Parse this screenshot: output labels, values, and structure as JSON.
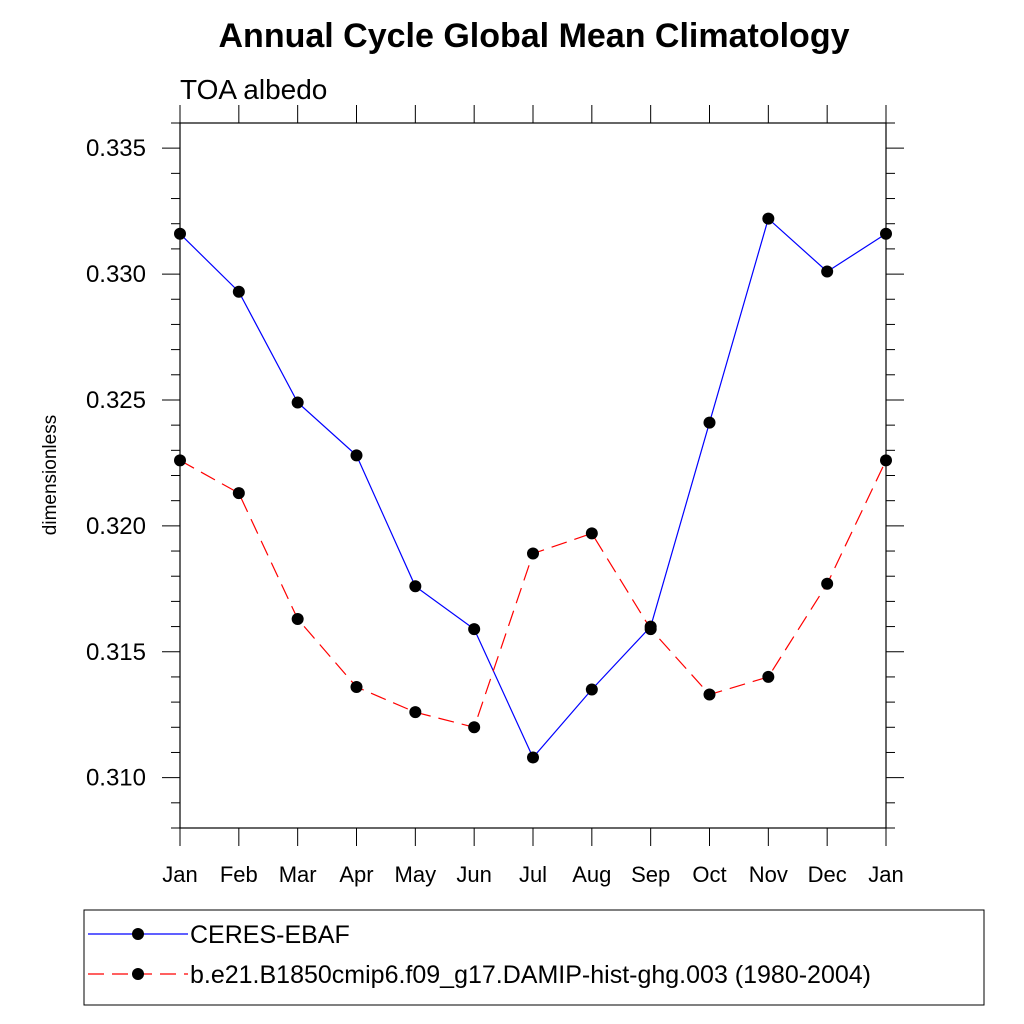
{
  "chart_data": {
    "type": "line",
    "title": "Annual Cycle Global Mean Climatology",
    "subtitle": "TOA albedo",
    "xlabel": "",
    "ylabel": "dimensionless",
    "categories": [
      "Jan",
      "Feb",
      "Mar",
      "Apr",
      "May",
      "Jun",
      "Jul",
      "Aug",
      "Sep",
      "Oct",
      "Nov",
      "Dec",
      "Jan"
    ],
    "ylim": [
      0.308,
      0.336
    ],
    "yticks": [
      "0.310",
      "0.315",
      "0.320",
      "0.325",
      "0.330",
      "0.335"
    ],
    "grid": false,
    "legend_position": "bottom",
    "series": [
      {
        "name": "CERES-EBAF",
        "color": "#0000ff",
        "line_style": "solid",
        "marker": "filled-circle",
        "values": [
          0.3316,
          0.3293,
          0.3249,
          0.3228,
          0.3176,
          0.3159,
          0.3108,
          0.3135,
          0.316,
          0.3241,
          0.3322,
          0.3301,
          0.3316
        ]
      },
      {
        "name": "b.e21.B1850cmip6.f09_g17.DAMIP-hist-ghg.003 (1980-2004)",
        "color": "#ff0000",
        "line_style": "dashed",
        "marker": "filled-circle",
        "values": [
          0.3226,
          0.3213,
          0.3163,
          0.3136,
          0.3126,
          0.312,
          0.3189,
          0.3197,
          0.3159,
          0.3133,
          0.314,
          0.3177,
          0.3226
        ]
      }
    ]
  }
}
